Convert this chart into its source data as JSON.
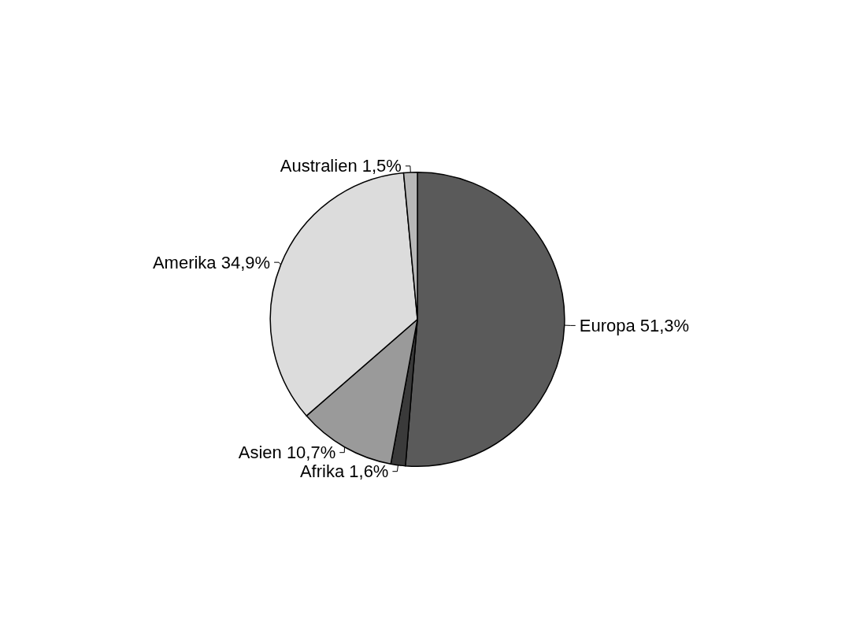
{
  "chart_data": {
    "type": "pie",
    "categories": [
      "Europa",
      "Afrika",
      "Asien",
      "Amerika",
      "Australien"
    ],
    "values": [
      51.3,
      1.6,
      10.7,
      34.9,
      1.5
    ],
    "value_labels": [
      "51,3%",
      "1,6%",
      "10,7%",
      "34,9%",
      "1,5%"
    ],
    "colors": [
      "#5a5a5a",
      "#3a3a3a",
      "#9a9a9a",
      "#dcdcdc",
      "#b8b8b8"
    ],
    "legend": false
  }
}
